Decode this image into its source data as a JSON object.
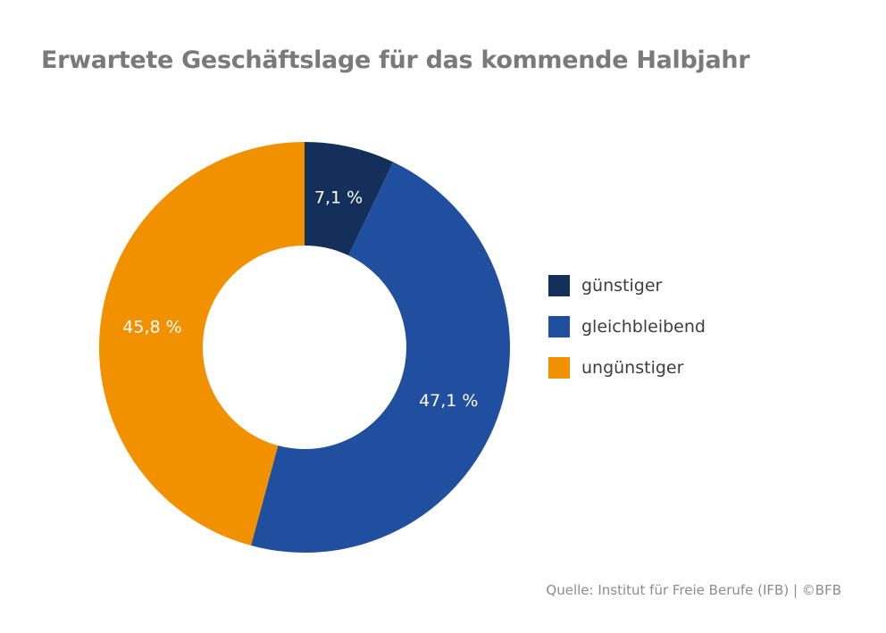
{
  "chart_data": {
    "type": "pie",
    "variant": "donut",
    "title": "Erwartete Geschäftslage für das kommende Halbjahr",
    "categories": [
      "günstiger",
      "gleichbleibend",
      "ungünstiger"
    ],
    "values": [
      7.1,
      47.1,
      45.8
    ],
    "data_labels": [
      "7,1 %",
      "47,1 %",
      "45,8 %"
    ],
    "colors": [
      "#14305a",
      "#1f4f9e",
      "#f29100"
    ],
    "legend_placement": "right",
    "source": "Quelle: Institut für Freie Berufe (IFB) | ©BFB"
  }
}
